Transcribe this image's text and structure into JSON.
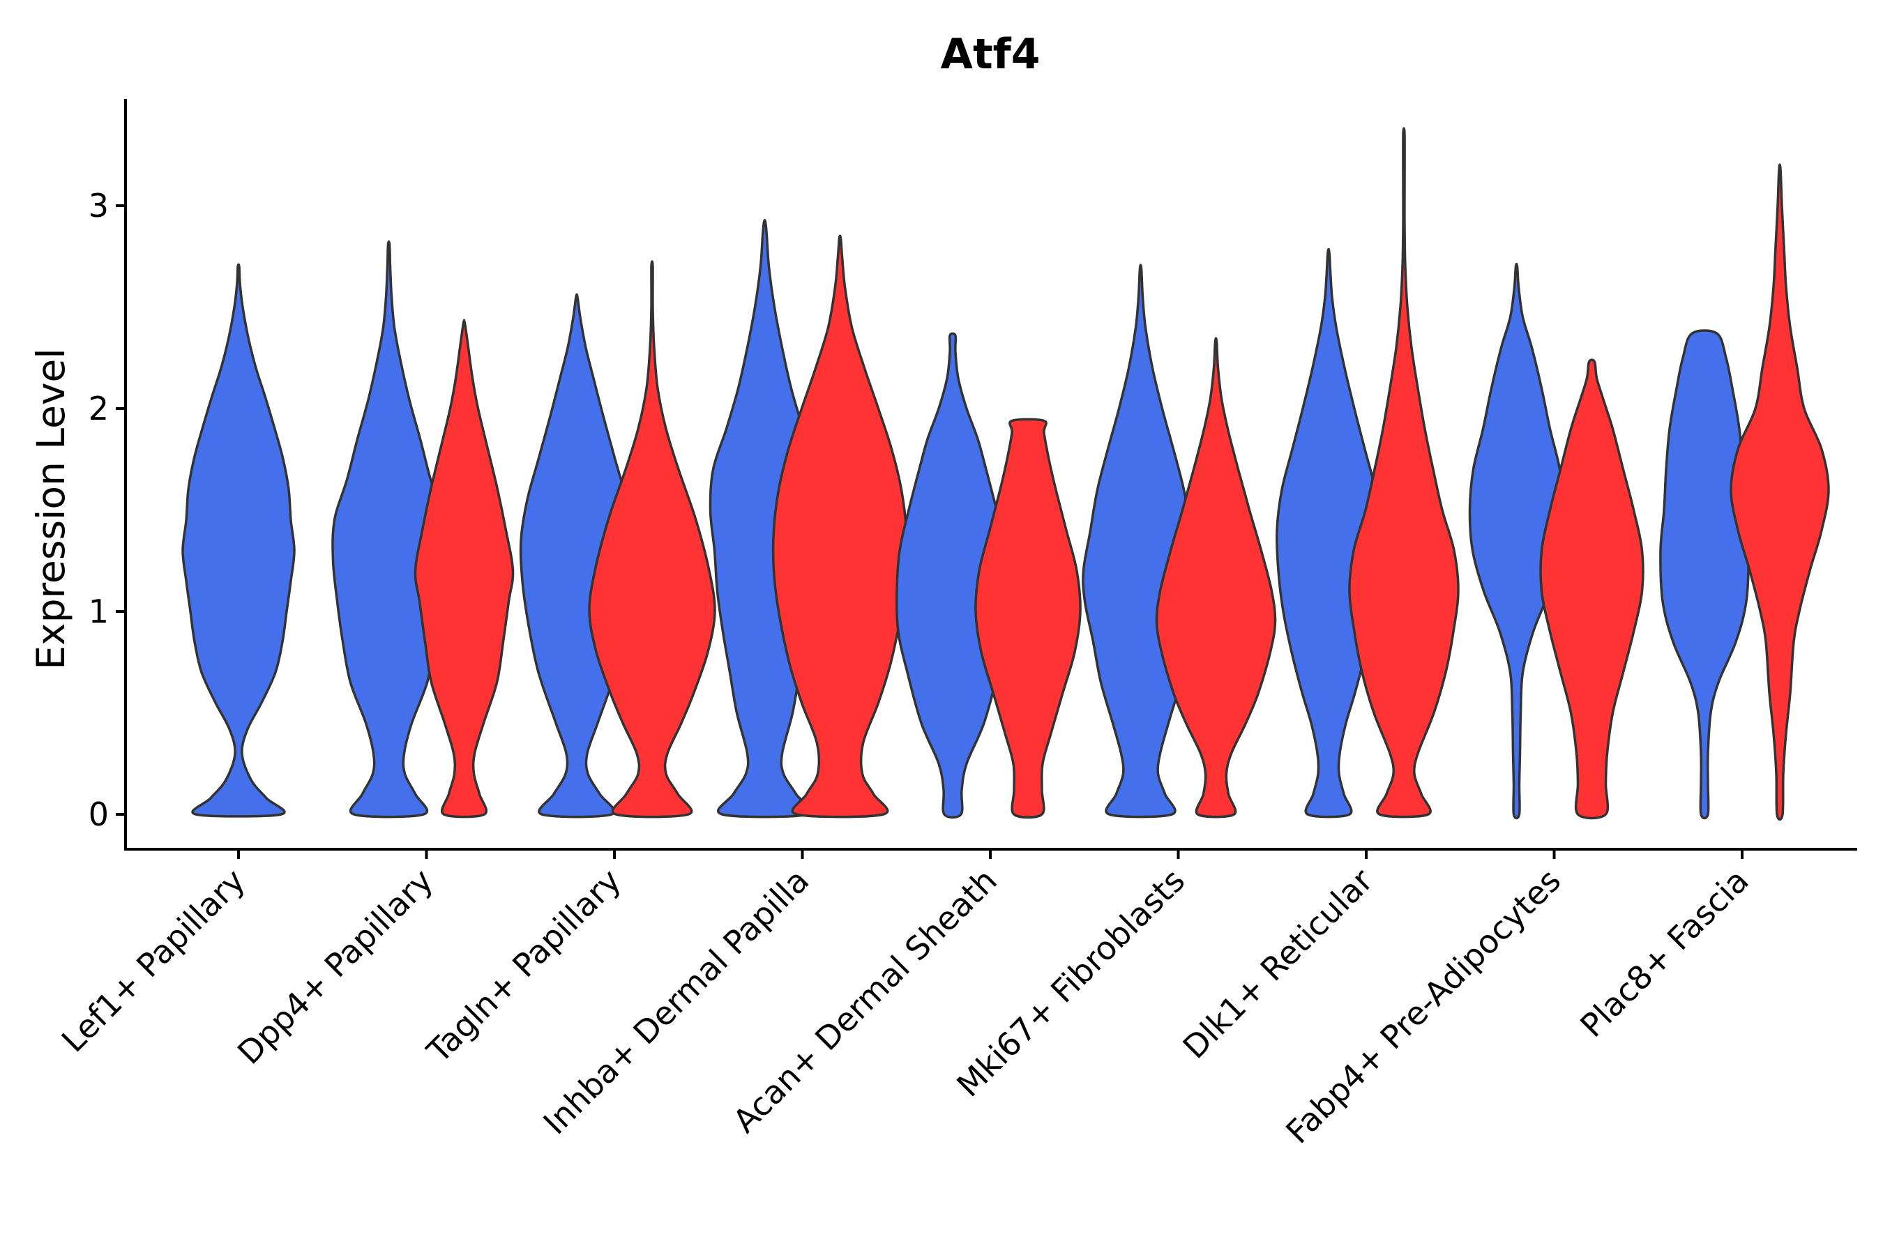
{
  "chart_data": {
    "type": "violin",
    "title": "Atf4",
    "xlabel": "",
    "ylabel": "Expression Level",
    "ylim": [
      -0.17,
      3.53
    ],
    "yticks": [
      "0",
      "1",
      "2",
      "3"
    ],
    "ytick_values": [
      0,
      1,
      2,
      3
    ],
    "grid": false,
    "legend": "none",
    "colors": {
      "group_a": "#4470EB",
      "group_b": "#FF3333",
      "outline": "#333333"
    },
    "categories": [
      "Lef1+ Papillary",
      "Dpp4+ Papillary",
      "Tagln+ Papillary",
      "Inhba+ Dermal Papilla",
      "Acan+ Dermal Sheath",
      "Mki67+ Fibroblasts",
      "Dlk1+ Reticular",
      "Fabp4+ Pre-Adipocytes",
      "Plac8+ Fascia"
    ],
    "violins": [
      {
        "category": 0,
        "group": "a",
        "min": 0,
        "max": 2.7,
        "profile": [
          [
            0,
            0.61
          ],
          [
            0.08,
            0.4
          ],
          [
            0.17,
            0.18
          ],
          [
            0.3,
            0.05
          ],
          [
            0.42,
            0.13
          ],
          [
            0.55,
            0.33
          ],
          [
            0.7,
            0.53
          ],
          [
            0.85,
            0.63
          ],
          [
            1.0,
            0.69
          ],
          [
            1.15,
            0.75
          ],
          [
            1.3,
            0.8
          ],
          [
            1.45,
            0.75
          ],
          [
            1.6,
            0.72
          ],
          [
            1.75,
            0.64
          ],
          [
            1.9,
            0.52
          ],
          [
            2.05,
            0.39
          ],
          [
            2.2,
            0.25
          ],
          [
            2.35,
            0.14
          ],
          [
            2.5,
            0.06
          ],
          [
            2.62,
            0.02
          ],
          [
            2.7,
            0.01
          ]
        ]
      },
      {
        "category": 1,
        "group": "a",
        "min": 0,
        "max": 2.81,
        "profile": [
          [
            0,
            0.5
          ],
          [
            0.1,
            0.38
          ],
          [
            0.2,
            0.23
          ],
          [
            0.3,
            0.22
          ],
          [
            0.45,
            0.33
          ],
          [
            0.65,
            0.55
          ],
          [
            0.85,
            0.66
          ],
          [
            1.05,
            0.74
          ],
          [
            1.25,
            0.8
          ],
          [
            1.45,
            0.78
          ],
          [
            1.65,
            0.6
          ],
          [
            1.85,
            0.45
          ],
          [
            2.05,
            0.29
          ],
          [
            2.25,
            0.16
          ],
          [
            2.4,
            0.08
          ],
          [
            2.55,
            0.04
          ],
          [
            2.7,
            0.02
          ],
          [
            2.81,
            0.01
          ]
        ]
      },
      {
        "category": 1,
        "group": "b",
        "min": 0,
        "max": 2.42,
        "profile": [
          [
            0,
            0.29
          ],
          [
            0.1,
            0.22
          ],
          [
            0.2,
            0.14
          ],
          [
            0.3,
            0.15
          ],
          [
            0.45,
            0.28
          ],
          [
            0.65,
            0.47
          ],
          [
            0.85,
            0.56
          ],
          [
            1.05,
            0.64
          ],
          [
            1.2,
            0.7
          ],
          [
            1.4,
            0.6
          ],
          [
            1.6,
            0.48
          ],
          [
            1.8,
            0.34
          ],
          [
            2.0,
            0.2
          ],
          [
            2.15,
            0.12
          ],
          [
            2.3,
            0.06
          ],
          [
            2.42,
            0.01
          ]
        ]
      },
      {
        "category": 2,
        "group": "a",
        "min": 0,
        "max": 2.55,
        "profile": [
          [
            0,
            0.5
          ],
          [
            0.1,
            0.33
          ],
          [
            0.2,
            0.16
          ],
          [
            0.3,
            0.15
          ],
          [
            0.45,
            0.3
          ],
          [
            0.7,
            0.55
          ],
          [
            0.95,
            0.7
          ],
          [
            1.15,
            0.78
          ],
          [
            1.35,
            0.8
          ],
          [
            1.55,
            0.71
          ],
          [
            1.75,
            0.55
          ],
          [
            1.95,
            0.39
          ],
          [
            2.15,
            0.24
          ],
          [
            2.3,
            0.13
          ],
          [
            2.45,
            0.05
          ],
          [
            2.55,
            0.01
          ]
        ]
      },
      {
        "category": 2,
        "group": "b",
        "min": 0,
        "max": 2.7,
        "profile": [
          [
            0,
            0.52
          ],
          [
            0.1,
            0.37
          ],
          [
            0.2,
            0.2
          ],
          [
            0.3,
            0.22
          ],
          [
            0.45,
            0.42
          ],
          [
            0.6,
            0.6
          ],
          [
            0.8,
            0.8
          ],
          [
            1.0,
            0.9
          ],
          [
            1.2,
            0.82
          ],
          [
            1.45,
            0.63
          ],
          [
            1.7,
            0.38
          ],
          [
            1.9,
            0.2
          ],
          [
            2.1,
            0.08
          ],
          [
            2.3,
            0.03
          ],
          [
            2.5,
            0.01
          ],
          [
            2.7,
            0.01
          ]
        ]
      },
      {
        "category": 3,
        "group": "a",
        "min": 0,
        "max": 2.92,
        "profile": [
          [
            0,
            0.61
          ],
          [
            0.1,
            0.45
          ],
          [
            0.2,
            0.27
          ],
          [
            0.3,
            0.25
          ],
          [
            0.5,
            0.4
          ],
          [
            0.7,
            0.5
          ],
          [
            0.9,
            0.6
          ],
          [
            1.1,
            0.68
          ],
          [
            1.3,
            0.72
          ],
          [
            1.5,
            0.78
          ],
          [
            1.7,
            0.74
          ],
          [
            1.9,
            0.55
          ],
          [
            2.1,
            0.38
          ],
          [
            2.3,
            0.25
          ],
          [
            2.5,
            0.14
          ],
          [
            2.7,
            0.06
          ],
          [
            2.85,
            0.03
          ],
          [
            2.92,
            0.01
          ]
        ]
      },
      {
        "category": 3,
        "group": "b",
        "min": 0,
        "max": 2.84,
        "profile": [
          [
            0,
            0.62
          ],
          [
            0.1,
            0.48
          ],
          [
            0.2,
            0.32
          ],
          [
            0.35,
            0.33
          ],
          [
            0.55,
            0.55
          ],
          [
            0.75,
            0.73
          ],
          [
            1.0,
            0.88
          ],
          [
            1.2,
            0.95
          ],
          [
            1.4,
            0.95
          ],
          [
            1.6,
            0.88
          ],
          [
            1.8,
            0.74
          ],
          [
            2.0,
            0.55
          ],
          [
            2.2,
            0.35
          ],
          [
            2.4,
            0.17
          ],
          [
            2.6,
            0.07
          ],
          [
            2.75,
            0.03
          ],
          [
            2.84,
            0.01
          ]
        ]
      },
      {
        "category": 4,
        "group": "a",
        "min": 0,
        "max": 2.36,
        "profile": [
          [
            0,
            0.12
          ],
          [
            0.12,
            0.13
          ],
          [
            0.25,
            0.2
          ],
          [
            0.45,
            0.45
          ],
          [
            0.7,
            0.65
          ],
          [
            0.9,
            0.78
          ],
          [
            1.1,
            0.8
          ],
          [
            1.3,
            0.76
          ],
          [
            1.5,
            0.63
          ],
          [
            1.7,
            0.48
          ],
          [
            1.85,
            0.36
          ],
          [
            2.0,
            0.2
          ],
          [
            2.15,
            0.08
          ],
          [
            2.28,
            0.04
          ],
          [
            2.36,
            0.04
          ]
        ]
      },
      {
        "category": 4,
        "group": "b",
        "min": 0,
        "max": 1.94,
        "profile": [
          [
            0,
            0.2
          ],
          [
            0.12,
            0.2
          ],
          [
            0.25,
            0.21
          ],
          [
            0.4,
            0.33
          ],
          [
            0.6,
            0.5
          ],
          [
            0.8,
            0.67
          ],
          [
            1.0,
            0.75
          ],
          [
            1.2,
            0.7
          ],
          [
            1.4,
            0.55
          ],
          [
            1.6,
            0.4
          ],
          [
            1.75,
            0.3
          ],
          [
            1.88,
            0.23
          ],
          [
            1.94,
            0.23
          ]
        ]
      },
      {
        "category": 5,
        "group": "a",
        "min": 0,
        "max": 2.69,
        "profile": [
          [
            0,
            0.45
          ],
          [
            0.1,
            0.35
          ],
          [
            0.2,
            0.25
          ],
          [
            0.3,
            0.28
          ],
          [
            0.45,
            0.4
          ],
          [
            0.65,
            0.57
          ],
          [
            0.85,
            0.68
          ],
          [
            1.05,
            0.8
          ],
          [
            1.2,
            0.82
          ],
          [
            1.4,
            0.72
          ],
          [
            1.6,
            0.62
          ],
          [
            1.8,
            0.47
          ],
          [
            2.0,
            0.31
          ],
          [
            2.2,
            0.17
          ],
          [
            2.4,
            0.07
          ],
          [
            2.55,
            0.03
          ],
          [
            2.69,
            0.01
          ]
        ]
      },
      {
        "category": 5,
        "group": "b",
        "min": 0,
        "max": 2.33,
        "profile": [
          [
            0,
            0.26
          ],
          [
            0.1,
            0.18
          ],
          [
            0.2,
            0.15
          ],
          [
            0.3,
            0.22
          ],
          [
            0.45,
            0.43
          ],
          [
            0.6,
            0.61
          ],
          [
            0.8,
            0.78
          ],
          [
            0.95,
            0.85
          ],
          [
            1.1,
            0.8
          ],
          [
            1.3,
            0.65
          ],
          [
            1.5,
            0.48
          ],
          [
            1.7,
            0.32
          ],
          [
            1.9,
            0.17
          ],
          [
            2.05,
            0.08
          ],
          [
            2.2,
            0.03
          ],
          [
            2.33,
            0.01
          ]
        ]
      },
      {
        "category": 6,
        "group": "a",
        "min": 0,
        "max": 2.77,
        "profile": [
          [
            0,
            0.3
          ],
          [
            0.1,
            0.22
          ],
          [
            0.2,
            0.15
          ],
          [
            0.3,
            0.16
          ],
          [
            0.45,
            0.25
          ],
          [
            0.6,
            0.38
          ],
          [
            0.8,
            0.53
          ],
          [
            1.0,
            0.65
          ],
          [
            1.2,
            0.72
          ],
          [
            1.4,
            0.74
          ],
          [
            1.6,
            0.67
          ],
          [
            1.8,
            0.52
          ],
          [
            2.0,
            0.37
          ],
          [
            2.2,
            0.23
          ],
          [
            2.4,
            0.11
          ],
          [
            2.55,
            0.05
          ],
          [
            2.65,
            0.03
          ],
          [
            2.77,
            0.01
          ]
        ]
      },
      {
        "category": 6,
        "group": "b",
        "min": 0,
        "max": 3.35,
        "profile": [
          [
            0,
            0.35
          ],
          [
            0.1,
            0.25
          ],
          [
            0.2,
            0.15
          ],
          [
            0.3,
            0.2
          ],
          [
            0.5,
            0.43
          ],
          [
            0.7,
            0.6
          ],
          [
            0.9,
            0.71
          ],
          [
            1.1,
            0.78
          ],
          [
            1.3,
            0.72
          ],
          [
            1.5,
            0.55
          ],
          [
            1.7,
            0.42
          ],
          [
            1.9,
            0.3
          ],
          [
            2.1,
            0.2
          ],
          [
            2.3,
            0.11
          ],
          [
            2.5,
            0.05
          ],
          [
            2.7,
            0.02
          ],
          [
            2.9,
            0.01
          ],
          [
            3.1,
            0.01
          ],
          [
            3.35,
            0.01
          ]
        ]
      },
      {
        "category": 7,
        "group": "a",
        "min": 0,
        "max": 2.7,
        "profile": [
          [
            0,
            0.04
          ],
          [
            0.15,
            0.04
          ],
          [
            0.3,
            0.05
          ],
          [
            0.5,
            0.06
          ],
          [
            0.7,
            0.09
          ],
          [
            0.9,
            0.24
          ],
          [
            1.1,
            0.47
          ],
          [
            1.3,
            0.63
          ],
          [
            1.5,
            0.67
          ],
          [
            1.7,
            0.62
          ],
          [
            1.9,
            0.48
          ],
          [
            2.1,
            0.36
          ],
          [
            2.3,
            0.22
          ],
          [
            2.45,
            0.09
          ],
          [
            2.6,
            0.03
          ],
          [
            2.7,
            0.01
          ]
        ]
      },
      {
        "category": 7,
        "group": "b",
        "min": 0,
        "max": 2.23,
        "profile": [
          [
            0,
            0.2
          ],
          [
            0.15,
            0.2
          ],
          [
            0.3,
            0.22
          ],
          [
            0.5,
            0.3
          ],
          [
            0.7,
            0.45
          ],
          [
            0.9,
            0.6
          ],
          [
            1.1,
            0.72
          ],
          [
            1.3,
            0.72
          ],
          [
            1.5,
            0.6
          ],
          [
            1.7,
            0.45
          ],
          [
            1.9,
            0.3
          ],
          [
            2.05,
            0.16
          ],
          [
            2.15,
            0.07
          ],
          [
            2.23,
            0.04
          ]
        ]
      },
      {
        "category": 8,
        "group": "a",
        "min": 0,
        "max": 2.37,
        "profile": [
          [
            0,
            0.05
          ],
          [
            0.15,
            0.05
          ],
          [
            0.3,
            0.05
          ],
          [
            0.5,
            0.09
          ],
          [
            0.65,
            0.2
          ],
          [
            0.85,
            0.45
          ],
          [
            1.05,
            0.6
          ],
          [
            1.3,
            0.63
          ],
          [
            1.5,
            0.58
          ],
          [
            1.7,
            0.55
          ],
          [
            1.9,
            0.5
          ],
          [
            2.1,
            0.4
          ],
          [
            2.25,
            0.31
          ],
          [
            2.37,
            0.18
          ]
        ]
      },
      {
        "category": 8,
        "group": "b",
        "min": 0,
        "max": 3.18,
        "profile": [
          [
            0,
            0.04
          ],
          [
            0.2,
            0.05
          ],
          [
            0.4,
            0.09
          ],
          [
            0.6,
            0.15
          ],
          [
            0.85,
            0.2
          ],
          [
            1.0,
            0.28
          ],
          [
            1.2,
            0.43
          ],
          [
            1.4,
            0.6
          ],
          [
            1.6,
            0.7
          ],
          [
            1.8,
            0.6
          ],
          [
            2.0,
            0.35
          ],
          [
            2.2,
            0.25
          ],
          [
            2.4,
            0.15
          ],
          [
            2.6,
            0.09
          ],
          [
            2.8,
            0.06
          ],
          [
            3.0,
            0.03
          ],
          [
            3.18,
            0.01
          ]
        ]
      }
    ]
  }
}
